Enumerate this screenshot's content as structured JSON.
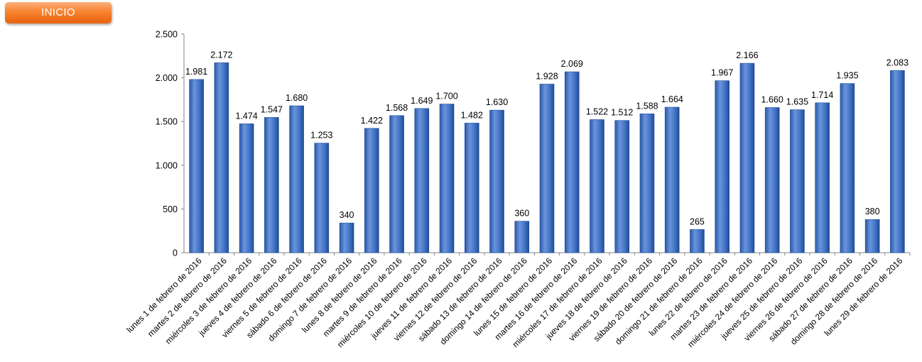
{
  "inicio_button": {
    "label": "INICIO"
  },
  "colors": {
    "bar": "#3f6fbf",
    "bar_light": "#6a95dd",
    "bar_dark": "#1f4c98",
    "button": "#f7832f"
  },
  "chart_data": {
    "type": "bar",
    "title": "",
    "xlabel": "",
    "ylabel": "",
    "ylim": [
      0,
      2500
    ],
    "yticks": [
      0,
      500,
      1000,
      1500,
      2000,
      2500
    ],
    "ytick_labels": [
      "0",
      "500",
      "1.000",
      "1.500",
      "2.000",
      "2.500"
    ],
    "grid": false,
    "legend": "none",
    "categories": [
      "lunes 1 de febrero de 2016",
      "martes 2 de febrero de 2016",
      "miércoles 3 de febrero de 2016",
      "jueves 4 de febrero de 2016",
      "viernes 5 de febrero de 2016",
      "sábado 6 de febrero de 2016",
      "domingo 7 de febrero de 2016",
      "lunes 8 de febrero de 2016",
      "martes 9 de febrero de 2016",
      "miércoles 10 de febrero de 2016",
      "jueves 11 de febrero de 2016",
      "viernes 12 de febrero de 2016",
      "sábado 13 de febrero de 2016",
      "domingo 14 de febrero de 2016",
      "lunes 15 de febrero de 2016",
      "martes 16 de febrero de 2016",
      "miércoles 17 de febrero de 2016",
      "jueves 18 de febrero de 2016",
      "viernes 19 de febrero de 2016",
      "sábado 20 de febrero de 2016",
      "domingo 21 de febrero de 2016",
      "lunes 22 de febrero de 2016",
      "martes 23 de febrero de 2016",
      "miércoles 24 de febrero de 2016",
      "jueves 25 de febrero de 2016",
      "viernes 26 de febrero de 2016",
      "sábado 27 de febrero de 2016",
      "domingo 28 de febrero de 2016",
      "lunes 29 de febrero de 2016"
    ],
    "values": [
      1981,
      2172,
      1474,
      1547,
      1680,
      1253,
      340,
      1422,
      1568,
      1649,
      1700,
      1482,
      1630,
      360,
      1928,
      2069,
      1522,
      1512,
      1588,
      1664,
      265,
      1967,
      2166,
      1660,
      1635,
      1714,
      1935,
      380,
      2083
    ],
    "value_labels": [
      "1.981",
      "2.172",
      "1.474",
      "1.547",
      "1.680",
      "1.253",
      "340",
      "1.422",
      "1.568",
      "1.649",
      "1.700",
      "1.482",
      "1.630",
      "360",
      "1.928",
      "2.069",
      "1.522",
      "1.512",
      "1.588",
      "1.664",
      "265",
      "1.967",
      "2.166",
      "1.660",
      "1.635",
      "1.714",
      "1.935",
      "380",
      "2.083"
    ]
  }
}
